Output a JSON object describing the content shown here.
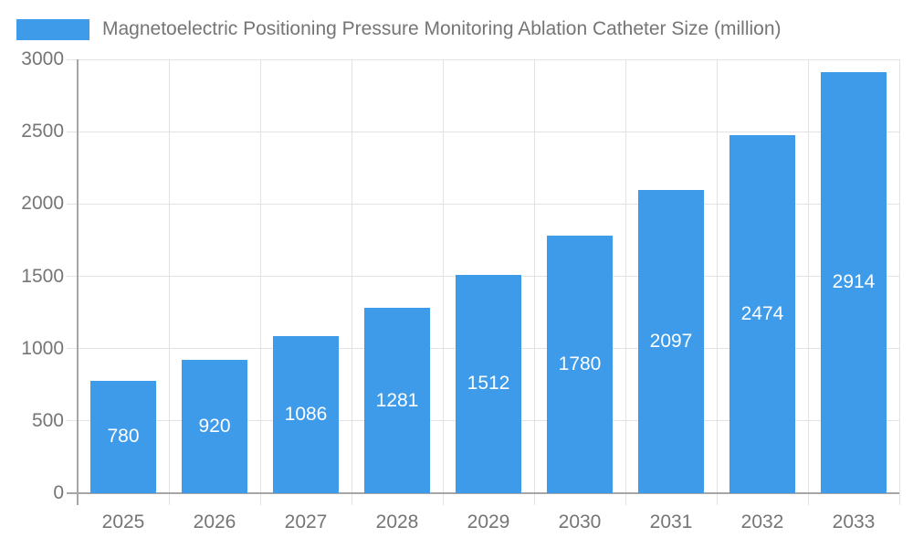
{
  "chart_data": {
    "type": "bar",
    "title": "Magnetoelectric Positioning Pressure Monitoring Ablation Catheter Size (million)",
    "categories": [
      "2025",
      "2026",
      "2027",
      "2028",
      "2029",
      "2030",
      "2031",
      "2032",
      "2033"
    ],
    "values": [
      780,
      920,
      1086,
      1281,
      1512,
      1780,
      2097,
      2474,
      2914
    ],
    "series_name": "Magnetoelectric Positioning Pressure Monitoring Ablation Catheter Size (million)",
    "xlabel": "",
    "ylabel": "",
    "ylim": [
      0,
      3000
    ],
    "yticks": [
      0,
      500,
      1000,
      1500,
      2000,
      2500,
      3000
    ],
    "grid": true,
    "legend_position": "top-left",
    "bar_labels_visible": true,
    "colors": {
      "bar": "#3D9BEA",
      "bar_label": "#FFFFFF",
      "axis_line": "#A6A6A6",
      "gridline": "#E3E3E3",
      "tick_text": "#757575",
      "title_text": "#757575",
      "background": "#FFFFFF"
    }
  }
}
